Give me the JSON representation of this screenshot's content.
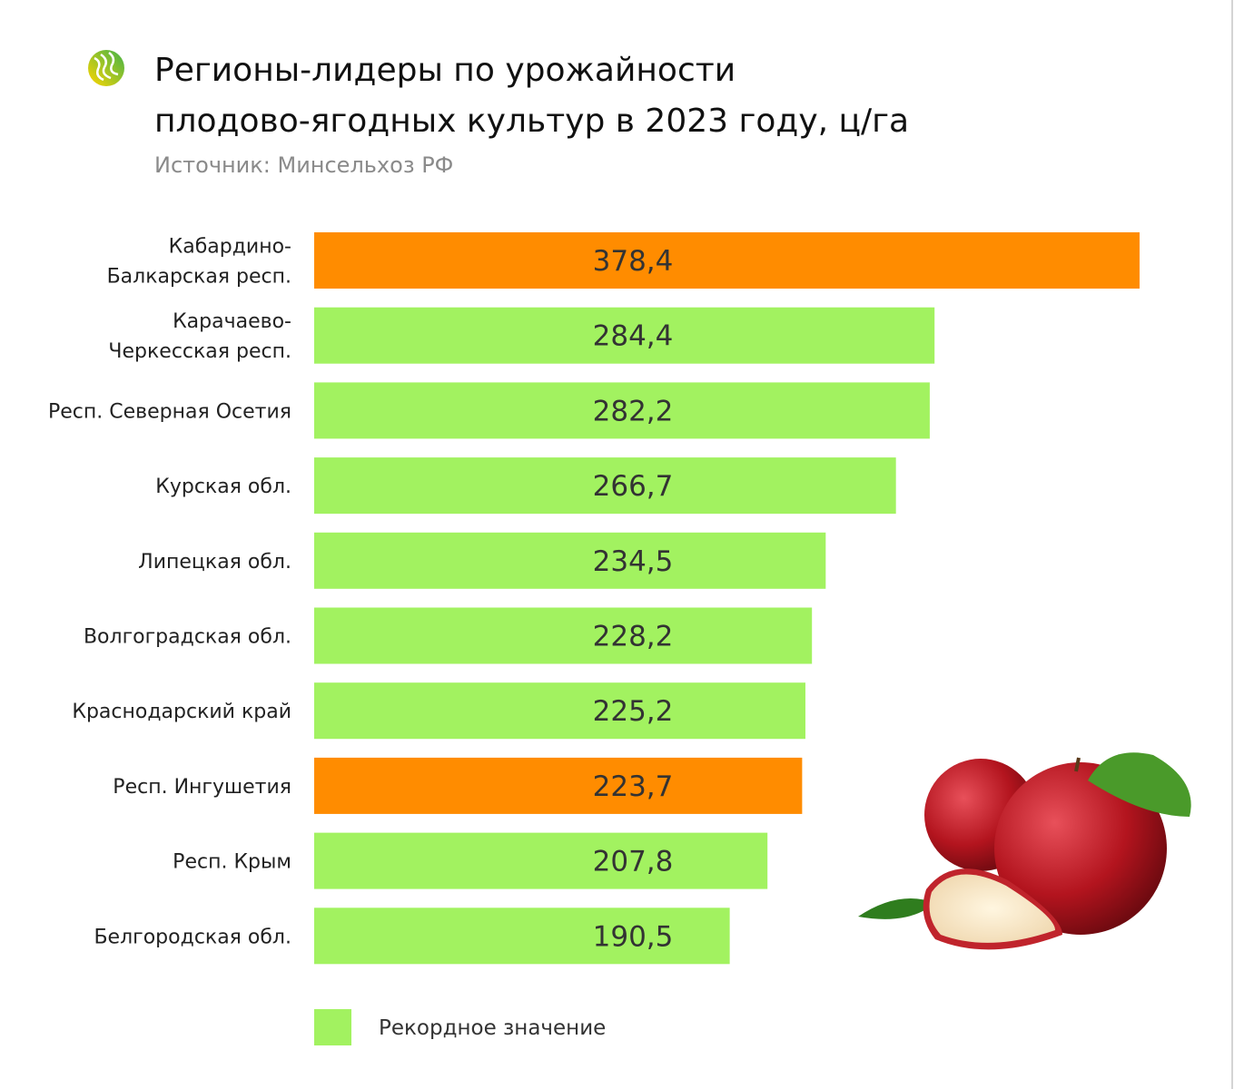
{
  "header": {
    "title_line1": "Регионы-лидеры по урожайности",
    "title_line2": "плодово-ягодных культур в 2023 году, ц/га",
    "source": "Источник: Минсельхоз РФ"
  },
  "legend": {
    "label": "Рекордное значение",
    "color": "#a2f260"
  },
  "colors": {
    "record": "#a2f260",
    "highlight": "#ff8c00"
  },
  "chart_data": {
    "type": "bar",
    "orientation": "horizontal",
    "title": "Регионы-лидеры по урожайности плодово-ягодных культур в 2023 году, ц/га",
    "categories": [
      [
        "Кабардино-",
        "Балкарская респ."
      ],
      [
        "Карачаево-",
        "Черкесская респ."
      ],
      [
        "Респ. Северная Осетия"
      ],
      [
        "Курская обл."
      ],
      [
        "Липецкая обл."
      ],
      [
        "Волгоградская обл."
      ],
      [
        "Краснодарский край"
      ],
      [
        "Респ. Ингушетия"
      ],
      [
        "Респ. Крым"
      ],
      [
        "Белгородская обл."
      ]
    ],
    "values": [
      378.4,
      284.4,
      282.2,
      266.7,
      234.5,
      228.2,
      225.2,
      223.7,
      207.8,
      190.5
    ],
    "value_labels": [
      "378,4",
      "284,4",
      "282,2",
      "266,7",
      "234,5",
      "228,2",
      "225,2",
      "223,7",
      "207,8",
      "190,5"
    ],
    "bar_colors": [
      "#ff8c00",
      "#a2f260",
      "#a2f260",
      "#a2f260",
      "#a2f260",
      "#a2f260",
      "#a2f260",
      "#ff8c00",
      "#a2f260",
      "#a2f260"
    ],
    "legend": [
      "Рекордное значение"
    ],
    "grid": false,
    "xlim": [
      0,
      378.4
    ]
  }
}
